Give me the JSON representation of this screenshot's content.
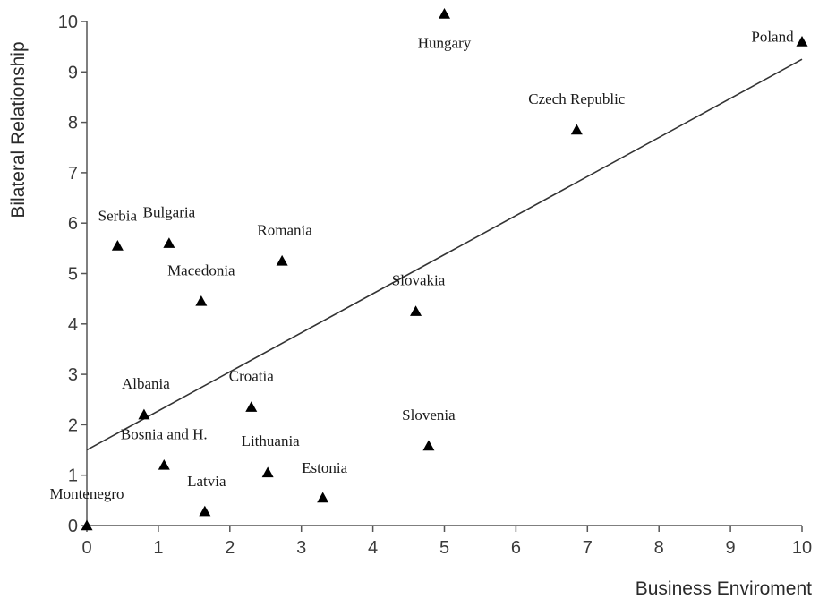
{
  "chart_data": {
    "type": "scatter",
    "title": "",
    "xlabel": "Business Enviroment",
    "ylabel": "Bilateral Relationship",
    "xlim": [
      0,
      10
    ],
    "ylim": [
      0,
      10
    ],
    "x_ticks": [
      "0",
      "1",
      "2",
      "3",
      "4",
      "5",
      "6",
      "7",
      "8",
      "9",
      "10"
    ],
    "y_ticks": [
      "0",
      "1",
      "2",
      "3",
      "4",
      "5",
      "6",
      "7",
      "8",
      "9",
      "10"
    ],
    "grid": false,
    "marker": "triangle",
    "colors": {
      "marker": "#000000",
      "axis": "#555555",
      "trend": "#333333"
    },
    "points": [
      {
        "label": "Montenegro",
        "x": 0.0,
        "y": 0.0
      },
      {
        "label": "Latvia",
        "x": 1.65,
        "y": 0.28
      },
      {
        "label": "Estonia",
        "x": 3.3,
        "y": 0.55
      },
      {
        "label": "Lithuania",
        "x": 2.53,
        "y": 1.05
      },
      {
        "label": "Bosnia and H.",
        "x": 1.08,
        "y": 1.2
      },
      {
        "label": "Albania",
        "x": 0.8,
        "y": 2.2
      },
      {
        "label": "Croatia",
        "x": 2.3,
        "y": 2.35
      },
      {
        "label": "Slovenia",
        "x": 4.78,
        "y": 1.58
      },
      {
        "label": "Slovakia",
        "x": 4.6,
        "y": 4.25
      },
      {
        "label": "Macedonia",
        "x": 1.6,
        "y": 4.45
      },
      {
        "label": "Romania",
        "x": 2.73,
        "y": 5.25
      },
      {
        "label": "Serbia",
        "x": 0.43,
        "y": 5.55
      },
      {
        "label": "Bulgaria",
        "x": 1.15,
        "y": 5.6
      },
      {
        "label": "Czech Republic",
        "x": 6.85,
        "y": 7.85
      },
      {
        "label": "Hungary",
        "x": 5.0,
        "y": 10.15
      },
      {
        "label": "Poland",
        "x": 10.0,
        "y": 9.6
      }
    ],
    "trendline": {
      "x": [
        0,
        10
      ],
      "y": [
        1.5,
        9.25
      ]
    }
  }
}
